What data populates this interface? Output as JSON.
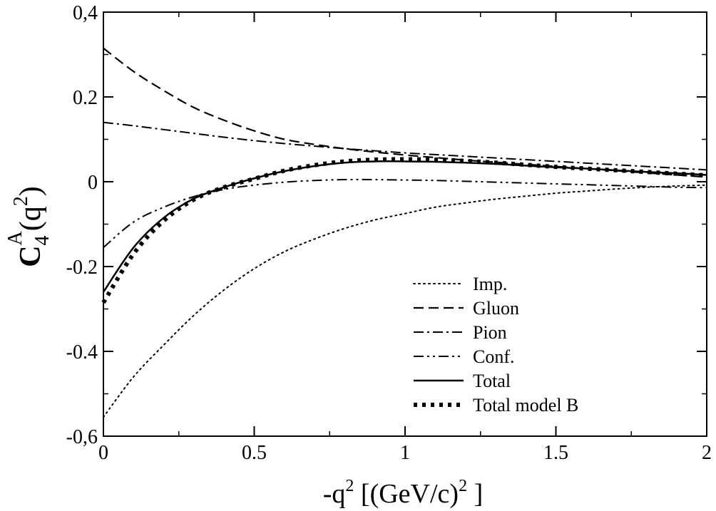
{
  "chart_data": {
    "type": "line",
    "xlabel": {
      "prefix": "-q",
      "sup": "2",
      "rest": " [(GeV/c)",
      "sup2": "2",
      "end": " ]"
    },
    "ylabel": {
      "base": "C",
      "sub": "4",
      "sup": "A",
      "arg_open": "(q",
      "arg_sup": "2",
      "arg_close": ")"
    },
    "xlim": [
      0,
      2
    ],
    "ylim": [
      -0.6,
      0.4
    ],
    "x_ticks": [
      {
        "value": 0,
        "label": "0"
      },
      {
        "value": 0.5,
        "label": "0.5"
      },
      {
        "value": 1,
        "label": "1"
      },
      {
        "value": 1.5,
        "label": "1.5"
      },
      {
        "value": 2,
        "label": "2"
      }
    ],
    "y_ticks": [
      {
        "value": 0.4,
        "label": "0,4"
      },
      {
        "value": 0.2,
        "label": "0.2"
      },
      {
        "value": 0,
        "label": "0"
      },
      {
        "value": -0.2,
        "label": "-0.2"
      },
      {
        "value": -0.4,
        "label": "-0.4"
      },
      {
        "value": -0.6,
        "label": "-0,6"
      }
    ],
    "x_minor_step": 0.25,
    "y_minor_step": 0.1,
    "grid": false,
    "legend_position": "bottom-right",
    "x": [
      0,
      0.1,
      0.2,
      0.3,
      0.4,
      0.5,
      0.6,
      0.7,
      0.8,
      0.9,
      1.0,
      1.1,
      1.2,
      1.3,
      1.4,
      1.5,
      1.6,
      1.7,
      1.8,
      1.9,
      2.0
    ],
    "series": [
      {
        "name": "Imp.",
        "style": "dotted",
        "values": [
          -0.555,
          -0.46,
          -0.385,
          -0.315,
          -0.255,
          -0.205,
          -0.165,
          -0.135,
          -0.11,
          -0.09,
          -0.075,
          -0.06,
          -0.05,
          -0.041,
          -0.034,
          -0.027,
          -0.022,
          -0.017,
          -0.013,
          -0.01,
          -0.008
        ]
      },
      {
        "name": "Gluon",
        "style": "dashed",
        "values": [
          0.315,
          0.26,
          0.215,
          0.175,
          0.145,
          0.12,
          0.1,
          0.088,
          0.078,
          0.07,
          0.063,
          0.057,
          0.051,
          0.046,
          0.041,
          0.036,
          0.031,
          0.026,
          0.021,
          0.016,
          0.011
        ]
      },
      {
        "name": "Pion",
        "style": "dashdot",
        "values": [
          0.14,
          0.132,
          0.123,
          0.114,
          0.105,
          0.097,
          0.09,
          0.084,
          0.078,
          0.073,
          0.068,
          0.064,
          0.06,
          0.056,
          0.052,
          0.048,
          0.044,
          0.04,
          0.036,
          0.032,
          0.028
        ]
      },
      {
        "name": "Conf.",
        "style": "dashdotdot",
        "values": [
          -0.155,
          -0.095,
          -0.06,
          -0.035,
          -0.018,
          -0.008,
          -0.001,
          0.003,
          0.005,
          0.005,
          0.004,
          0.003,
          0.001,
          -0.001,
          -0.003,
          -0.005,
          -0.007,
          -0.009,
          -0.011,
          -0.013,
          -0.014
        ]
      },
      {
        "name": "Total",
        "style": "solid",
        "values": [
          -0.26,
          -0.155,
          -0.085,
          -0.04,
          -0.013,
          0.008,
          0.025,
          0.037,
          0.045,
          0.048,
          0.048,
          0.047,
          0.045,
          0.042,
          0.038,
          0.034,
          0.031,
          0.027,
          0.023,
          0.02,
          0.016
        ]
      },
      {
        "name": "Total model B",
        "style": "thick-dotted",
        "values": [
          -0.285,
          -0.17,
          -0.092,
          -0.042,
          -0.013,
          0.007,
          0.026,
          0.039,
          0.048,
          0.052,
          0.053,
          0.052,
          0.049,
          0.045,
          0.04,
          0.035,
          0.031,
          0.027,
          0.023,
          0.019,
          0.015
        ]
      }
    ]
  }
}
